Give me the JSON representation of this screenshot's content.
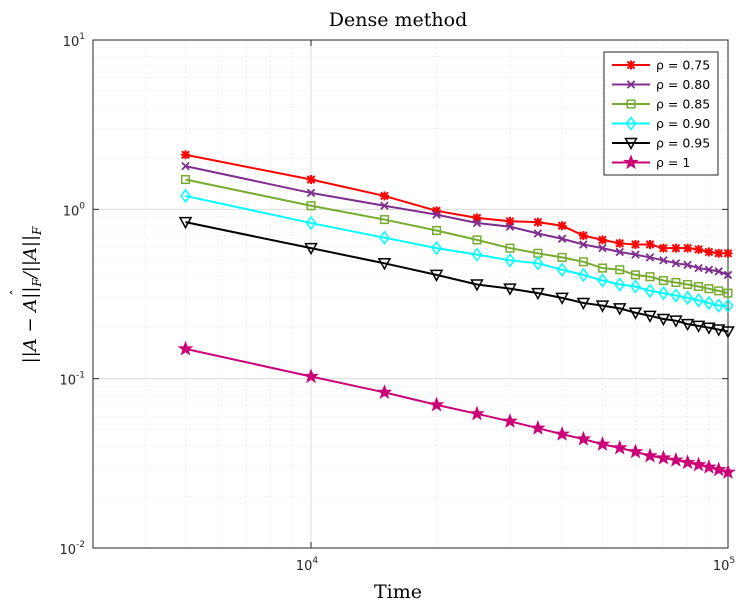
{
  "chart_data": {
    "type": "line",
    "title": "Dense method",
    "xlabel": "Time",
    "ylabel": "||A − Â||_F / ||A||_F",
    "xscale": "log",
    "yscale": "log",
    "xlim": [
      3000,
      100000
    ],
    "ylim": [
      0.01,
      10
    ],
    "grid": true,
    "minor_grid": true,
    "legend_position": "top-right",
    "x_ticks": [
      {
        "value": 10000,
        "base": "10",
        "exp": "4"
      },
      {
        "value": 100000,
        "base": "10",
        "exp": "5"
      }
    ],
    "y_ticks": [
      {
        "value": 0.01,
        "base": "10",
        "exp": "-2"
      },
      {
        "value": 0.1,
        "base": "10",
        "exp": "-1"
      },
      {
        "value": 1,
        "base": "10",
        "exp": "0"
      },
      {
        "value": 10,
        "base": "10",
        "exp": "1"
      }
    ],
    "x": [
      5000,
      10000,
      15000,
      20000,
      25000,
      30000,
      35000,
      40000,
      45000,
      50000,
      55000,
      60000,
      65000,
      70000,
      75000,
      80000,
      85000,
      90000,
      95000,
      100000
    ],
    "series": [
      {
        "name": "ρ = 0.75",
        "color": "#ff0000",
        "marker": "asterisk",
        "values": [
          2.1,
          1.5,
          1.2,
          0.98,
          0.89,
          0.85,
          0.84,
          0.8,
          0.7,
          0.66,
          0.63,
          0.62,
          0.62,
          0.59,
          0.59,
          0.59,
          0.58,
          0.56,
          0.55,
          0.55
        ]
      },
      {
        "name": "ρ = 0.80",
        "color": "#7e2f8e",
        "marker": "x",
        "values": [
          1.8,
          1.25,
          1.05,
          0.93,
          0.83,
          0.79,
          0.72,
          0.67,
          0.62,
          0.59,
          0.56,
          0.54,
          0.52,
          0.5,
          0.48,
          0.47,
          0.45,
          0.44,
          0.43,
          0.41
        ]
      },
      {
        "name": "ρ = 0.85",
        "color": "#77ac30",
        "marker": "square",
        "values": [
          1.5,
          1.05,
          0.87,
          0.75,
          0.66,
          0.59,
          0.55,
          0.52,
          0.49,
          0.45,
          0.44,
          0.41,
          0.4,
          0.38,
          0.37,
          0.36,
          0.35,
          0.34,
          0.33,
          0.32
        ]
      },
      {
        "name": "ρ = 0.90",
        "color": "#00ffff",
        "marker": "diamond",
        "values": [
          1.2,
          0.83,
          0.68,
          0.59,
          0.54,
          0.5,
          0.48,
          0.44,
          0.41,
          0.38,
          0.36,
          0.35,
          0.33,
          0.32,
          0.31,
          0.3,
          0.29,
          0.28,
          0.27,
          0.27
        ]
      },
      {
        "name": "ρ = 0.95",
        "color": "#000000",
        "marker": "triangle-down",
        "values": [
          0.84,
          0.59,
          0.48,
          0.41,
          0.36,
          0.34,
          0.32,
          0.3,
          0.28,
          0.27,
          0.26,
          0.245,
          0.235,
          0.225,
          0.22,
          0.21,
          0.205,
          0.2,
          0.195,
          0.19
        ]
      },
      {
        "name": "ρ = 1",
        "color": "#cc0077",
        "marker": "star",
        "values": [
          0.15,
          0.103,
          0.083,
          0.07,
          0.062,
          0.056,
          0.051,
          0.047,
          0.044,
          0.041,
          0.039,
          0.037,
          0.035,
          0.034,
          0.033,
          0.032,
          0.031,
          0.03,
          0.029,
          0.028
        ]
      }
    ]
  }
}
